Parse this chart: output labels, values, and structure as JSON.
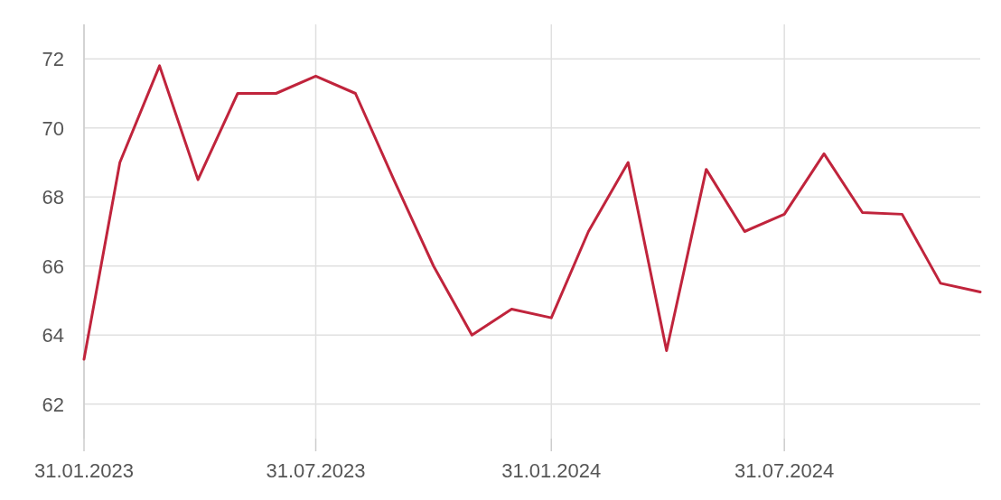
{
  "chart_data": {
    "type": "line",
    "x": [
      "2023-01-31",
      "2023-02-28",
      "2023-03-31",
      "2023-04-30",
      "2023-05-31",
      "2023-06-30",
      "2023-07-31",
      "2023-08-31",
      "2023-09-30",
      "2023-10-31",
      "2023-11-30",
      "2023-12-31",
      "2024-01-31",
      "2024-02-29",
      "2024-03-31",
      "2024-04-30",
      "2024-05-31",
      "2024-06-30",
      "2024-07-31",
      "2024-08-31",
      "2024-09-30",
      "2024-10-31",
      "2024-11-30",
      "2024-12-31"
    ],
    "series": [
      {
        "color": "#c0243c",
        "values": [
          63.3,
          69.0,
          71.8,
          68.5,
          71.0,
          71.0,
          71.5,
          71.0,
          68.5,
          66.0,
          64.0,
          64.75,
          64.5,
          67.0,
          69.0,
          63.55,
          68.8,
          67.0,
          67.5,
          69.25,
          67.55,
          67.5,
          65.5,
          65.25
        ]
      }
    ],
    "xlim": [
      "2023-01-31",
      "2024-12-31"
    ],
    "xticks": [
      {
        "value": "2023-01-31",
        "label": "31.01.2023"
      },
      {
        "value": "2023-07-31",
        "label": "31.07.2023"
      },
      {
        "value": "2024-01-31",
        "label": "31.01.2024"
      },
      {
        "value": "2024-07-31",
        "label": "31.07.2024"
      }
    ],
    "ylim": [
      61,
      73
    ],
    "yticks": [
      62,
      64,
      66,
      68,
      70,
      72
    ],
    "grid": true,
    "marker": "none",
    "line_style": "solid"
  }
}
